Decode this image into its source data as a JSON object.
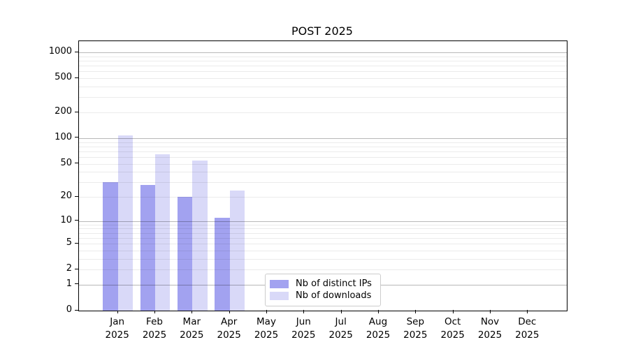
{
  "chart_data": {
    "type": "bar",
    "title": "POST 2025",
    "xlabel": "",
    "ylabel": "",
    "yscale": "log1p",
    "grid": true,
    "legend_position": "inside-bottom-center",
    "ylim": [
      0,
      1350
    ],
    "yticks": [
      0,
      1,
      2,
      5,
      10,
      20,
      50,
      100,
      200,
      500,
      1000
    ],
    "categories": [
      "Jan 2025",
      "Feb 2025",
      "Mar 2025",
      "Apr 2025",
      "May 2025",
      "Jun 2025",
      "Jul 2025",
      "Aug 2025",
      "Sep 2025",
      "Oct 2025",
      "Nov 2025",
      "Dec 2025"
    ],
    "series": [
      {
        "name": "Nb of distinct IPs",
        "key": "distinct-ips",
        "color": "#a2a2f0",
        "values": [
          30,
          28,
          20,
          11,
          0,
          0,
          0,
          0,
          0,
          0,
          0,
          0
        ]
      },
      {
        "name": "Nb of downloads",
        "key": "downloads",
        "color": "#d9d9f8",
        "values": [
          107,
          65,
          54,
          24,
          0,
          0,
          0,
          0,
          0,
          0,
          0,
          0
        ]
      }
    ]
  }
}
